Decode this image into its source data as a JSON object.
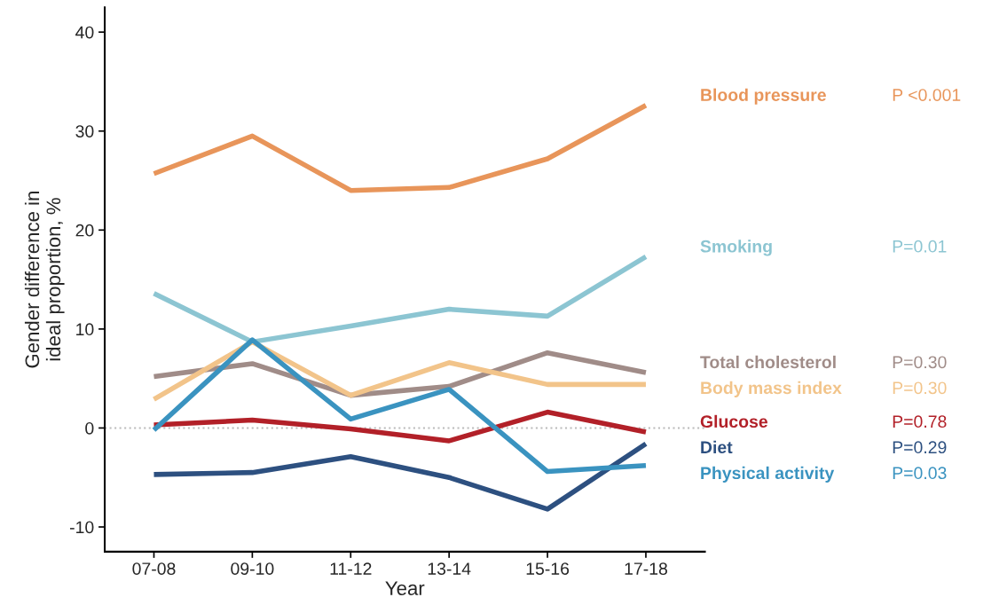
{
  "chart_data": {
    "type": "line",
    "xlabel": "Year",
    "ylabel": "Gender difference in\nideal proportion, %",
    "categories": [
      "07-08",
      "09-10",
      "11-12",
      "13-14",
      "15-16",
      "17-18"
    ],
    "series": [
      {
        "name": "Blood pressure",
        "color": "#e8955a",
        "values": [
          25.7,
          29.5,
          24.0,
          24.3,
          27.2,
          32.6
        ]
      },
      {
        "name": "Smoking",
        "color": "#8cc5d2",
        "values": [
          13.6,
          8.7,
          10.3,
          12.0,
          11.3,
          17.3
        ]
      },
      {
        "name": "Total cholesterol",
        "color": "#a08c88",
        "values": [
          5.2,
          6.5,
          3.3,
          4.2,
          7.6,
          5.6
        ]
      },
      {
        "name": "Body mass index",
        "color": "#f2c48a",
        "values": [
          2.9,
          8.7,
          3.3,
          6.6,
          4.4,
          4.4
        ]
      },
      {
        "name": "Glucose",
        "color": "#b22028",
        "values": [
          0.3,
          0.8,
          -0.1,
          -1.3,
          1.6,
          -0.4
        ]
      },
      {
        "name": "Diet",
        "color": "#2d5080",
        "values": [
          -4.7,
          -4.5,
          -2.9,
          -5.0,
          -8.2,
          -1.6
        ]
      },
      {
        "name": "Physical activity",
        "color": "#3a93c0",
        "values": [
          -0.2,
          8.9,
          0.9,
          3.9,
          -4.4,
          -3.8
        ]
      }
    ],
    "annotations": [
      "P <0.001",
      "P=0.01",
      "P=0.30",
      "P=0.30",
      "P=0.78",
      "P=0.29",
      "P=0.03"
    ],
    "ylim": [
      -12.5,
      42.5
    ],
    "yticks": [
      -10,
      0,
      10,
      20,
      30,
      40
    ],
    "ref_lines": [
      {
        "axis": "y",
        "value": 0,
        "color": "#bbbbbb",
        "line_style": "dotted"
      }
    ],
    "grid": false,
    "legend": "right",
    "marker": "none",
    "line_style": "solid"
  }
}
